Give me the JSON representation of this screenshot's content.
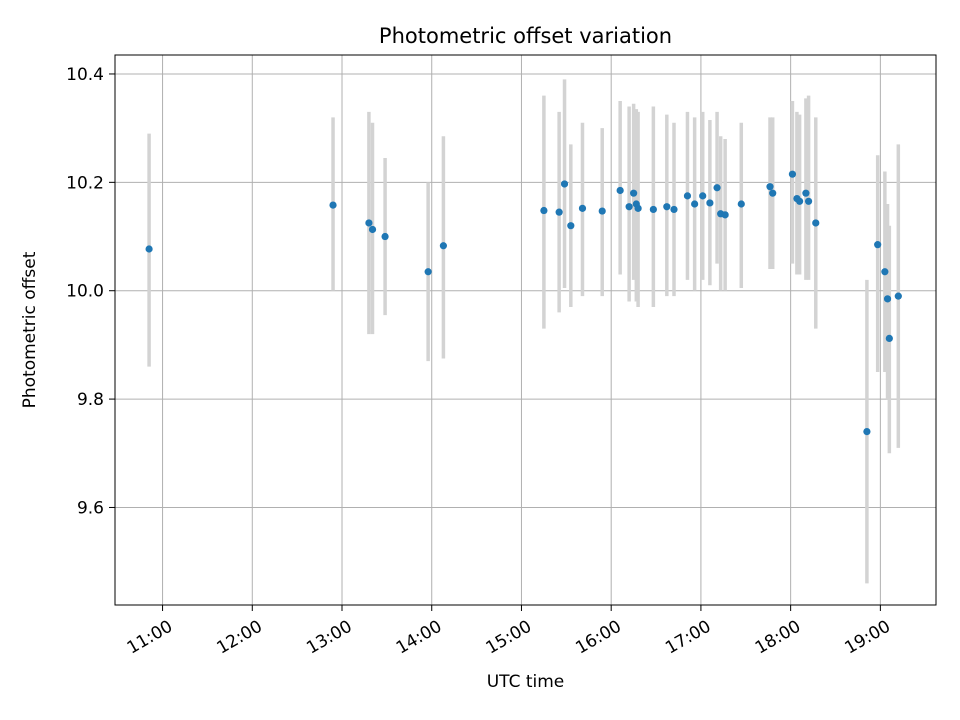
{
  "title": "Photometric offset variation",
  "chart_data": {
    "type": "scatter",
    "title": "Photometric offset variation",
    "xlabel": "UTC time",
    "ylabel": "Photometric offset",
    "grid": true,
    "legend": "none",
    "marker_color": "#1f77b4",
    "errorbar_color": "#d3d3d3",
    "grid_color": "#b0b0b0",
    "axis_color": "#000000",
    "xlim_hours": [
      10.47,
      19.62
    ],
    "ylim": [
      9.42,
      10.435
    ],
    "x_ticks": {
      "values": [
        11,
        12,
        13,
        14,
        15,
        16,
        17,
        18,
        19
      ],
      "labels": [
        "11:00",
        "12:00",
        "13:00",
        "14:00",
        "15:00",
        "16:00",
        "17:00",
        "18:00",
        "19:00"
      ]
    },
    "y_ticks": {
      "values": [
        9.6,
        9.8,
        10.0,
        10.2,
        10.4
      ],
      "labels": [
        "9.6",
        "9.8",
        "10.0",
        "10.2",
        "10.4"
      ]
    },
    "points_note": "each point is [utc_decimal_hours, offset, errbar_low, errbar_high]",
    "points": [
      [
        10.85,
        10.077,
        9.86,
        10.29
      ],
      [
        12.9,
        10.158,
        10.0,
        10.32
      ],
      [
        13.3,
        10.125,
        9.92,
        10.33
      ],
      [
        13.34,
        10.113,
        9.92,
        10.31
      ],
      [
        13.48,
        10.1,
        9.955,
        10.245
      ],
      [
        13.96,
        10.035,
        9.87,
        10.2
      ],
      [
        14.13,
        10.083,
        9.875,
        10.285
      ],
      [
        15.25,
        10.148,
        9.93,
        10.36
      ],
      [
        15.42,
        10.145,
        9.96,
        10.33
      ],
      [
        15.48,
        10.197,
        10.005,
        10.39
      ],
      [
        15.55,
        10.12,
        9.97,
        10.27
      ],
      [
        15.68,
        10.152,
        9.99,
        10.31
      ],
      [
        15.9,
        10.147,
        9.99,
        10.3
      ],
      [
        16.1,
        10.185,
        10.03,
        10.35
      ],
      [
        16.2,
        10.155,
        9.98,
        10.34
      ],
      [
        16.25,
        10.18,
        10.02,
        10.345
      ],
      [
        16.28,
        10.16,
        9.98,
        10.335
      ],
      [
        16.3,
        10.152,
        9.97,
        10.33
      ],
      [
        16.47,
        10.15,
        9.97,
        10.34
      ],
      [
        16.62,
        10.155,
        9.99,
        10.325
      ],
      [
        16.7,
        10.15,
        9.99,
        10.31
      ],
      [
        16.85,
        10.175,
        10.02,
        10.33
      ],
      [
        16.93,
        10.16,
        10.0,
        10.32
      ],
      [
        17.02,
        10.175,
        10.02,
        10.33
      ],
      [
        17.1,
        10.162,
        10.01,
        10.315
      ],
      [
        17.18,
        10.19,
        10.05,
        10.33
      ],
      [
        17.22,
        10.142,
        10.0,
        10.285
      ],
      [
        17.27,
        10.14,
        10.0,
        10.28
      ],
      [
        17.45,
        10.16,
        10.005,
        10.31
      ],
      [
        17.77,
        10.192,
        10.04,
        10.32
      ],
      [
        17.8,
        10.18,
        10.04,
        10.32
      ],
      [
        18.02,
        10.215,
        10.05,
        10.35
      ],
      [
        18.07,
        10.17,
        10.03,
        10.33
      ],
      [
        18.1,
        10.165,
        10.03,
        10.325
      ],
      [
        18.17,
        10.18,
        10.02,
        10.355
      ],
      [
        18.2,
        10.165,
        10.02,
        10.36
      ],
      [
        18.28,
        10.125,
        9.93,
        10.32
      ],
      [
        18.85,
        9.74,
        9.46,
        10.02
      ],
      [
        18.97,
        10.085,
        9.85,
        10.25
      ],
      [
        19.05,
        10.035,
        9.85,
        10.22
      ],
      [
        19.08,
        9.985,
        9.8,
        10.16
      ],
      [
        19.1,
        9.912,
        9.7,
        10.12
      ],
      [
        19.2,
        9.99,
        9.71,
        10.27
      ]
    ]
  }
}
